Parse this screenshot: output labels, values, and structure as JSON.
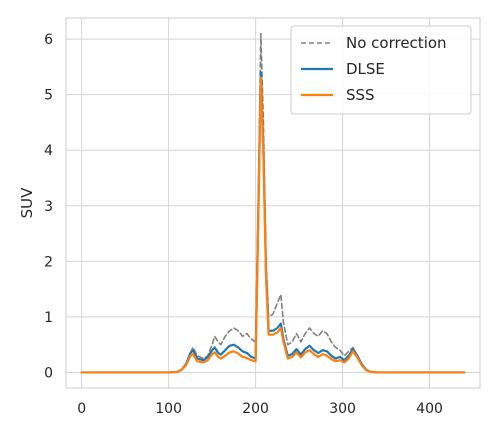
{
  "chart_data": {
    "type": "line",
    "title": "",
    "xlabel": "",
    "ylabel": "SUV",
    "xlim": [
      -18,
      458
    ],
    "ylim": [
      -0.28,
      6.38
    ],
    "x_ticks": [
      0,
      100,
      200,
      300,
      400
    ],
    "y_ticks": [
      0,
      1,
      2,
      3,
      4,
      5,
      6
    ],
    "grid": true,
    "legend_position": "upper-right",
    "series": [
      {
        "name": "No correction",
        "color": "#808080",
        "dash": "dashed",
        "points": [
          [
            0,
            0
          ],
          [
            100,
            0
          ],
          [
            110,
            0.01
          ],
          [
            115,
            0.05
          ],
          [
            120,
            0.15
          ],
          [
            125,
            0.35
          ],
          [
            128,
            0.45
          ],
          [
            133,
            0.3
          ],
          [
            140,
            0.25
          ],
          [
            145,
            0.3
          ],
          [
            150,
            0.5
          ],
          [
            153,
            0.65
          ],
          [
            157,
            0.55
          ],
          [
            160,
            0.5
          ],
          [
            165,
            0.65
          ],
          [
            170,
            0.75
          ],
          [
            175,
            0.8
          ],
          [
            180,
            0.75
          ],
          [
            185,
            0.65
          ],
          [
            190,
            0.7
          ],
          [
            195,
            0.6
          ],
          [
            200,
            0.55
          ],
          [
            203,
            3.0
          ],
          [
            206,
            6.1
          ],
          [
            209,
            4.5
          ],
          [
            212,
            2.0
          ],
          [
            215,
            1.0
          ],
          [
            220,
            1.05
          ],
          [
            225,
            1.25
          ],
          [
            229,
            1.4
          ],
          [
            232,
            0.9
          ],
          [
            237,
            0.5
          ],
          [
            242,
            0.55
          ],
          [
            247,
            0.7
          ],
          [
            252,
            0.55
          ],
          [
            257,
            0.7
          ],
          [
            262,
            0.8
          ],
          [
            267,
            0.7
          ],
          [
            272,
            0.65
          ],
          [
            277,
            0.75
          ],
          [
            282,
            0.7
          ],
          [
            287,
            0.55
          ],
          [
            292,
            0.45
          ],
          [
            297,
            0.4
          ],
          [
            302,
            0.3
          ],
          [
            307,
            0.38
          ],
          [
            312,
            0.45
          ],
          [
            317,
            0.3
          ],
          [
            322,
            0.15
          ],
          [
            327,
            0.05
          ],
          [
            332,
            0.01
          ],
          [
            340,
            0
          ],
          [
            440,
            0
          ]
        ]
      },
      {
        "name": "DLSE",
        "color": "#1f77b4",
        "dash": "solid",
        "points": [
          [
            0,
            0
          ],
          [
            100,
            0
          ],
          [
            110,
            0.01
          ],
          [
            115,
            0.05
          ],
          [
            120,
            0.15
          ],
          [
            125,
            0.35
          ],
          [
            128,
            0.4
          ],
          [
            133,
            0.25
          ],
          [
            140,
            0.22
          ],
          [
            145,
            0.28
          ],
          [
            150,
            0.4
          ],
          [
            153,
            0.45
          ],
          [
            157,
            0.35
          ],
          [
            160,
            0.32
          ],
          [
            165,
            0.4
          ],
          [
            170,
            0.48
          ],
          [
            175,
            0.5
          ],
          [
            180,
            0.45
          ],
          [
            185,
            0.38
          ],
          [
            190,
            0.35
          ],
          [
            195,
            0.28
          ],
          [
            200,
            0.25
          ],
          [
            203,
            2.8
          ],
          [
            206,
            5.4
          ],
          [
            209,
            4.0
          ],
          [
            212,
            1.8
          ],
          [
            215,
            0.75
          ],
          [
            220,
            0.75
          ],
          [
            225,
            0.8
          ],
          [
            229,
            0.88
          ],
          [
            232,
            0.6
          ],
          [
            237,
            0.3
          ],
          [
            242,
            0.33
          ],
          [
            247,
            0.42
          ],
          [
            252,
            0.32
          ],
          [
            257,
            0.42
          ],
          [
            262,
            0.48
          ],
          [
            267,
            0.4
          ],
          [
            272,
            0.35
          ],
          [
            277,
            0.4
          ],
          [
            282,
            0.38
          ],
          [
            287,
            0.3
          ],
          [
            292,
            0.25
          ],
          [
            297,
            0.28
          ],
          [
            302,
            0.22
          ],
          [
            307,
            0.3
          ],
          [
            312,
            0.42
          ],
          [
            317,
            0.3
          ],
          [
            322,
            0.15
          ],
          [
            327,
            0.05
          ],
          [
            332,
            0.01
          ],
          [
            340,
            0
          ],
          [
            440,
            0
          ]
        ]
      },
      {
        "name": "SSS",
        "color": "#ff7f0e",
        "dash": "solid",
        "points": [
          [
            0,
            0
          ],
          [
            100,
            0
          ],
          [
            110,
            0.01
          ],
          [
            115,
            0.05
          ],
          [
            120,
            0.13
          ],
          [
            125,
            0.3
          ],
          [
            128,
            0.33
          ],
          [
            133,
            0.2
          ],
          [
            140,
            0.18
          ],
          [
            145,
            0.22
          ],
          [
            150,
            0.33
          ],
          [
            153,
            0.36
          ],
          [
            157,
            0.28
          ],
          [
            160,
            0.25
          ],
          [
            165,
            0.3
          ],
          [
            170,
            0.36
          ],
          [
            175,
            0.38
          ],
          [
            180,
            0.34
          ],
          [
            185,
            0.28
          ],
          [
            190,
            0.26
          ],
          [
            195,
            0.22
          ],
          [
            200,
            0.2
          ],
          [
            203,
            2.7
          ],
          [
            206,
            5.3
          ],
          [
            209,
            3.9
          ],
          [
            212,
            1.7
          ],
          [
            215,
            0.68
          ],
          [
            220,
            0.68
          ],
          [
            225,
            0.72
          ],
          [
            229,
            0.8
          ],
          [
            232,
            0.55
          ],
          [
            237,
            0.25
          ],
          [
            242,
            0.28
          ],
          [
            247,
            0.36
          ],
          [
            252,
            0.27
          ],
          [
            257,
            0.36
          ],
          [
            262,
            0.4
          ],
          [
            267,
            0.33
          ],
          [
            272,
            0.28
          ],
          [
            277,
            0.33
          ],
          [
            282,
            0.3
          ],
          [
            287,
            0.24
          ],
          [
            292,
            0.2
          ],
          [
            297,
            0.22
          ],
          [
            302,
            0.18
          ],
          [
            307,
            0.25
          ],
          [
            312,
            0.38
          ],
          [
            317,
            0.27
          ],
          [
            322,
            0.13
          ],
          [
            327,
            0.04
          ],
          [
            332,
            0.01
          ],
          [
            340,
            0
          ],
          [
            440,
            0
          ]
        ]
      }
    ]
  }
}
